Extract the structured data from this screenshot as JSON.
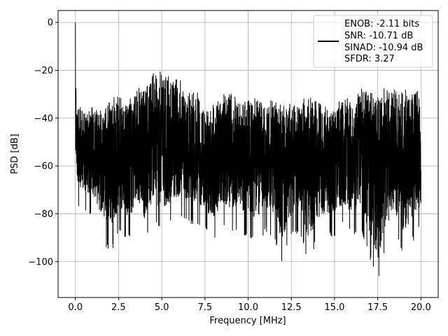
{
  "chart_data": {
    "type": "line",
    "title": "",
    "xlabel": "Frequency [MHz]",
    "ylabel": "PSD [dB]",
    "xlim": [
      -1.0,
      21.0
    ],
    "ylim": [
      -115,
      5
    ],
    "xticks": [
      0.0,
      2.5,
      5.0,
      7.5,
      10.0,
      12.5,
      15.0,
      17.5,
      20.0
    ],
    "xtick_labels": [
      "0.0",
      "2.5",
      "5.0",
      "7.5",
      "10.0",
      "12.5",
      "15.0",
      "17.5",
      "20.0"
    ],
    "yticks": [
      0,
      -20,
      -40,
      -60,
      -80,
      -100
    ],
    "ytick_labels": [
      "0",
      "−20",
      "−40",
      "−60",
      "−80",
      "−100"
    ],
    "grid": true,
    "legend_position": "top-right",
    "legend_entries": [
      "ENOB: -2.11 bits",
      "SNR: -10.71 dB",
      "SINAD: -10.94 dB",
      "SFDR: 3.27"
    ],
    "series": [
      {
        "color": "#000000",
        "x": [
          0.0,
          0.05,
          0.1,
          0.5,
          1.0,
          1.5,
          2.0,
          2.5,
          3.0,
          3.5,
          4.0,
          4.5,
          5.0,
          5.5,
          6.0,
          6.5,
          7.0,
          7.5,
          8.0,
          8.5,
          9.0,
          9.5,
          10.0,
          10.5,
          11.0,
          11.5,
          12.0,
          12.5,
          13.0,
          13.5,
          14.0,
          14.5,
          15.0,
          15.5,
          16.0,
          16.5,
          17.0,
          17.5,
          18.0,
          18.5,
          19.0,
          19.5,
          20.0
        ],
        "upper_envelope": [
          0,
          -26,
          -34,
          -35,
          -35,
          -36,
          -33,
          -29,
          -33,
          -28,
          -26,
          -21,
          -20,
          -23,
          -21,
          -28,
          -28,
          -36,
          -32,
          -30,
          -26,
          -33,
          -31,
          -31,
          -33,
          -30,
          -35,
          -33,
          -33,
          -30,
          -33,
          -33,
          -37,
          -29,
          -31,
          -27,
          -26,
          -29,
          -27,
          -26,
          -27,
          -28,
          -27
        ],
        "lower_envelope": [
          -62,
          -70,
          -78,
          -80,
          -83,
          -90,
          -98,
          -89,
          -92,
          -88,
          -92,
          -85,
          -88,
          -85,
          -83,
          -85,
          -85,
          -88,
          -93,
          -85,
          -88,
          -88,
          -90,
          -92,
          -88,
          -90,
          -102,
          -90,
          -88,
          -101,
          -92,
          -90,
          -90,
          -86,
          -90,
          -86,
          -98,
          -110,
          -94,
          -90,
          -98,
          -92,
          -87
        ],
        "noise_floor_mean": -57
      }
    ]
  }
}
